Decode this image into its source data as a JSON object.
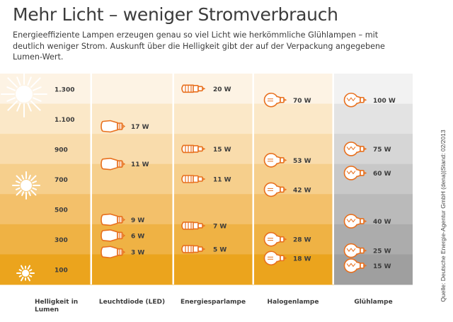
{
  "header": {
    "title": "Mehr Licht – weniger Stromverbrauch",
    "subtitle": "Energieeffiziente Lampen erzeugen genau so viel Licht wie herkömmliche Glühlampen – mit deutlich weniger Strom. Auskunft über die Helligkeit gibt der auf der Verpackung angegebene Lumen-Wert."
  },
  "source": "Quelle: Deutsche Energie-Agentur GmbH (dena)|Stand: 02/2013",
  "colors": {
    "levels": [
      "#fdf3e4",
      "#fbe8c8",
      "#f9dcac",
      "#f6cf8c",
      "#f3c06a",
      "#efb244",
      "#eba41d"
    ],
    "levels_gray": [
      "#f2f2f2",
      "#e3e3e3",
      "#d6d6d6",
      "#c8c8c8",
      "#bababa",
      "#acacac",
      "#9f9f9f"
    ],
    "bulb": "#e8701e",
    "text": "#3c3c3c"
  },
  "chart_data": {
    "type": "table",
    "title": "Mehr Licht – weniger Stromverbrauch",
    "row_axis_label": "Helligkeit in Lumen",
    "rows": [
      "1.300",
      "1.100",
      "900",
      "700",
      "500",
      "300",
      "100"
    ],
    "row_values_lumen": [
      1300,
      1100,
      900,
      700,
      500,
      300,
      100
    ],
    "series": [
      {
        "name": "Leuchtdiode (LED)",
        "icon": "led-bulb-icon",
        "points": [
          {
            "lumen": 1050,
            "watt": 17,
            "label": "17 W"
          },
          {
            "lumen": 800,
            "watt": 11,
            "label": "11 W"
          },
          {
            "lumen": 430,
            "watt": 9,
            "label": "9 W"
          },
          {
            "lumen": 325,
            "watt": 6,
            "label": "6 W"
          },
          {
            "lumen": 215,
            "watt": 3,
            "label": "3 W"
          }
        ]
      },
      {
        "name": "Energiesparlampe",
        "icon": "energy-saving-bulb-icon",
        "points": [
          {
            "lumen": 1300,
            "watt": 20,
            "label": "20 W"
          },
          {
            "lumen": 900,
            "watt": 15,
            "label": "15 W"
          },
          {
            "lumen": 700,
            "watt": 11,
            "label": "11 W"
          },
          {
            "lumen": 390,
            "watt": 7,
            "label": "7 W"
          },
          {
            "lumen": 235,
            "watt": 5,
            "label": "5 W"
          }
        ]
      },
      {
        "name": "Halogenlampe",
        "icon": "halogen-bulb-icon",
        "points": [
          {
            "lumen": 1225,
            "watt": 70,
            "label": "70 W"
          },
          {
            "lumen": 825,
            "watt": 53,
            "label": "53 W"
          },
          {
            "lumen": 630,
            "watt": 42,
            "label": "42 W"
          },
          {
            "lumen": 300,
            "watt": 28,
            "label": "28 W"
          },
          {
            "lumen": 175,
            "watt": 18,
            "label": "18 W"
          }
        ]
      },
      {
        "name": "Glühlampe",
        "icon": "incandescent-bulb-icon",
        "points": [
          {
            "lumen": 1225,
            "watt": 100,
            "label": "100 W"
          },
          {
            "lumen": 900,
            "watt": 75,
            "label": "75 W"
          },
          {
            "lumen": 740,
            "watt": 60,
            "label": "60 W"
          },
          {
            "lumen": 420,
            "watt": 40,
            "label": "40 W"
          },
          {
            "lumen": 225,
            "watt": 25,
            "label": "25 W"
          },
          {
            "lumen": 125,
            "watt": 15,
            "label": "15 W"
          }
        ]
      }
    ]
  }
}
